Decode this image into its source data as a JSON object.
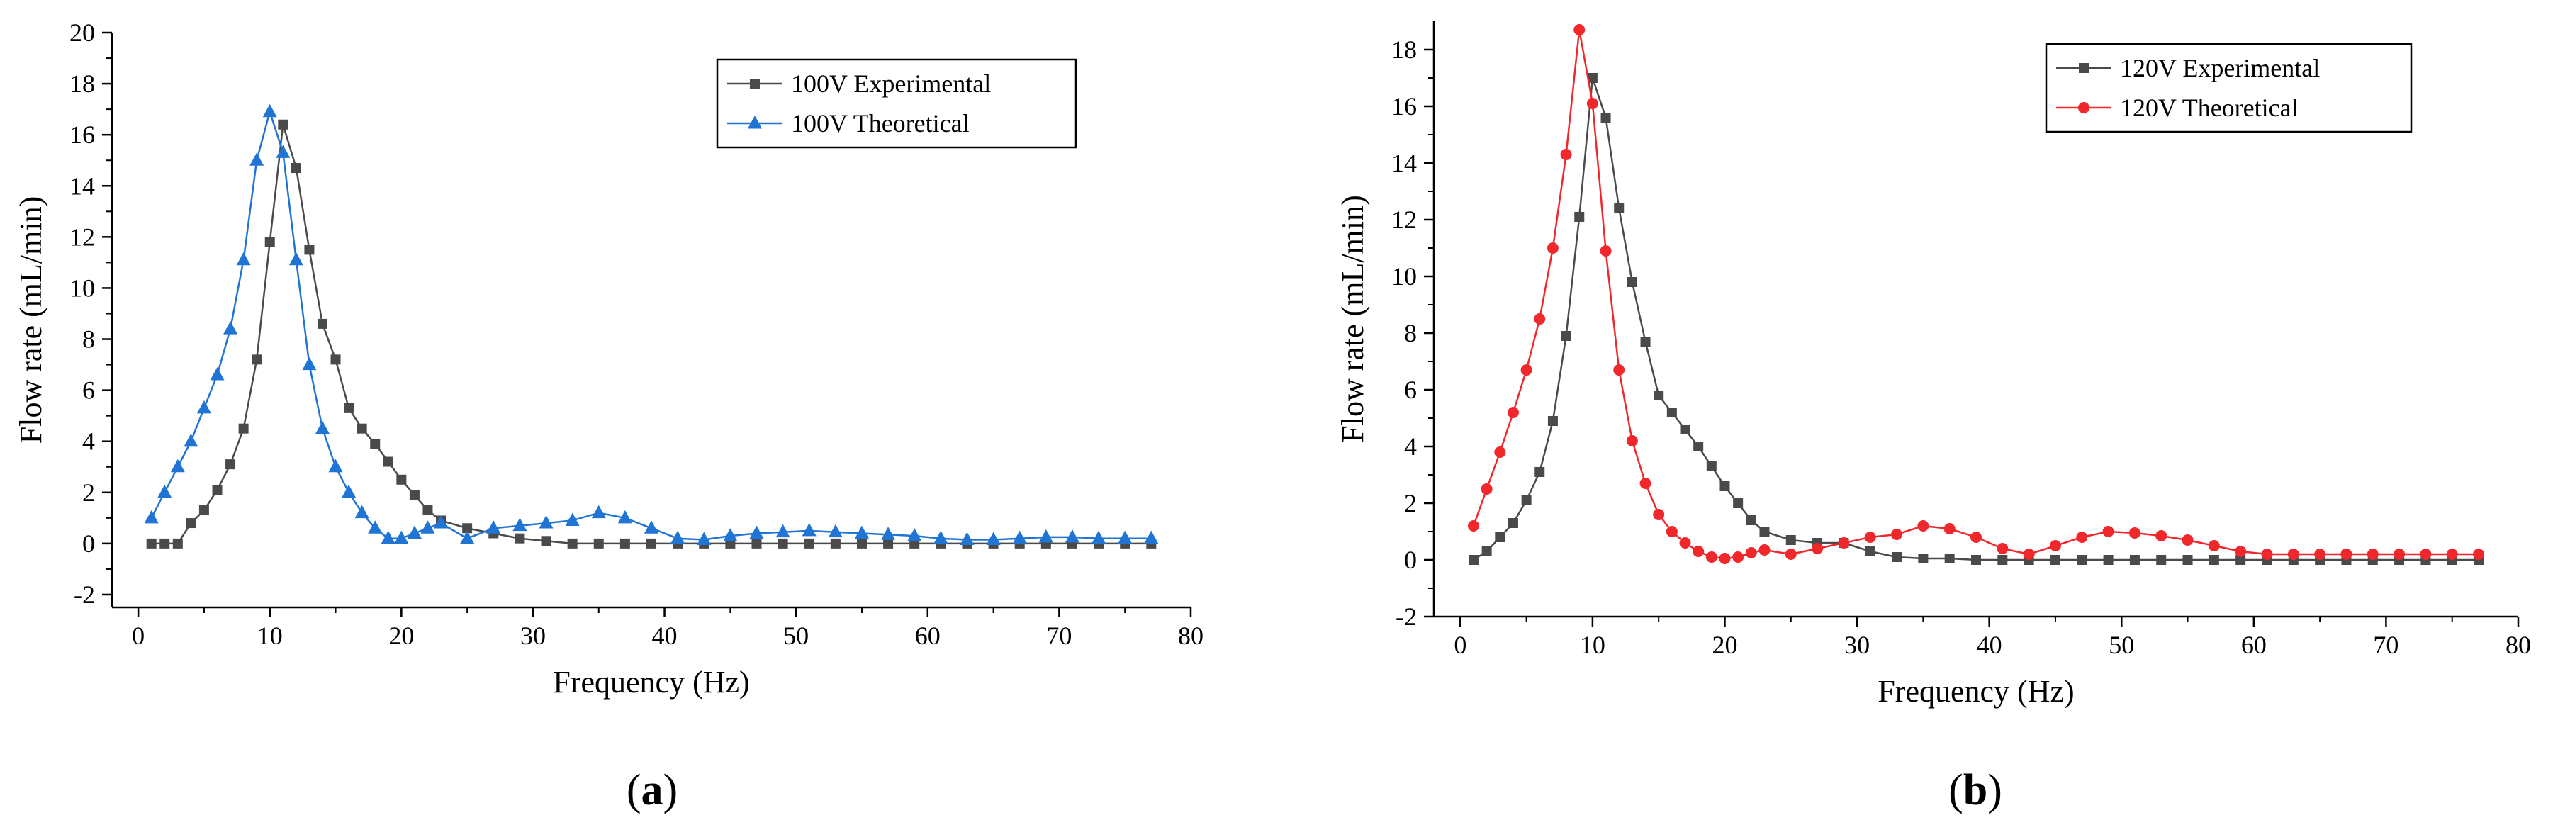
{
  "chart_data": [
    {
      "type": "line",
      "panel_label": "a",
      "xlabel": "Frequency (Hz)",
      "ylabel": "Flow rate (mL/min)",
      "xlim": [
        -2,
        80
      ],
      "ylim": [
        -2.5,
        20
      ],
      "xticks": [
        0,
        10,
        20,
        30,
        40,
        50,
        60,
        70,
        80
      ],
      "yticks": [
        -2,
        0,
        2,
        4,
        6,
        8,
        10,
        12,
        14,
        16,
        18,
        20
      ],
      "legend_position": "top-right",
      "series": [
        {
          "name": "100V Experimental",
          "color": "#4a4a4a",
          "marker": "square",
          "x": [
            1,
            2,
            3,
            4,
            5,
            6,
            7,
            8,
            9,
            10,
            11,
            12,
            13,
            14,
            15,
            16,
            17,
            18,
            19,
            20,
            21,
            22,
            23,
            25,
            27,
            29,
            31,
            33,
            35,
            37,
            39,
            41,
            43,
            45,
            47,
            49,
            51,
            53,
            55,
            57,
            59,
            61,
            63,
            65,
            67,
            69,
            71,
            73,
            75,
            77
          ],
          "y": [
            0,
            0,
            0,
            0.8,
            1.3,
            2.1,
            3.1,
            4.5,
            7.2,
            11.8,
            16.4,
            14.7,
            11.5,
            8.6,
            7.2,
            5.3,
            4.5,
            3.9,
            3.2,
            2.5,
            1.9,
            1.3,
            0.9,
            0.6,
            0.4,
            0.2,
            0.1,
            0,
            0,
            0,
            0,
            0,
            0,
            0,
            0,
            0,
            0,
            0,
            0,
            0,
            0,
            0,
            0,
            0,
            0,
            0,
            0,
            0,
            0,
            0
          ]
        },
        {
          "name": "100V Theoretical",
          "color": "#1f74d4",
          "marker": "triangle",
          "x": [
            1,
            2,
            3,
            4,
            5,
            6,
            7,
            8,
            9,
            10,
            11,
            12,
            13,
            14,
            15,
            16,
            17,
            18,
            19,
            20,
            21,
            22,
            23,
            25,
            27,
            29,
            31,
            33,
            35,
            37,
            39,
            41,
            43,
            45,
            47,
            49,
            51,
            53,
            55,
            57,
            59,
            61,
            63,
            65,
            67,
            69,
            71,
            73,
            75,
            77
          ],
          "y": [
            1.0,
            2.0,
            3.0,
            4.0,
            5.3,
            6.6,
            8.4,
            11.1,
            15.0,
            16.9,
            15.3,
            11.1,
            7.0,
            4.5,
            3.0,
            2.0,
            1.2,
            0.6,
            0.2,
            0.2,
            0.4,
            0.6,
            0.8,
            0.2,
            0.6,
            0.7,
            0.8,
            0.9,
            1.2,
            1.0,
            0.6,
            0.2,
            0.15,
            0.3,
            0.4,
            0.45,
            0.5,
            0.45,
            0.4,
            0.35,
            0.3,
            0.2,
            0.15,
            0.15,
            0.2,
            0.25,
            0.25,
            0.2,
            0.2,
            0.2
          ]
        }
      ]
    },
    {
      "type": "line",
      "panel_label": "b",
      "xlabel": "Frequency (Hz)",
      "ylabel": "Flow rate (mL/min)",
      "xlim": [
        -2,
        80
      ],
      "ylim": [
        -2,
        19
      ],
      "xticks": [
        0,
        10,
        20,
        30,
        40,
        50,
        60,
        70,
        80
      ],
      "yticks": [
        -2,
        0,
        2,
        4,
        6,
        8,
        10,
        12,
        14,
        16,
        18
      ],
      "legend_position": "top-right",
      "series": [
        {
          "name": "120V Experimental",
          "color": "#4a4a4a",
          "marker": "square",
          "x": [
            1,
            2,
            3,
            4,
            5,
            6,
            7,
            8,
            9,
            10,
            11,
            12,
            13,
            14,
            15,
            16,
            17,
            18,
            19,
            20,
            21,
            22,
            23,
            25,
            27,
            29,
            31,
            33,
            35,
            37,
            39,
            41,
            43,
            45,
            47,
            49,
            51,
            53,
            55,
            57,
            59,
            61,
            63,
            65,
            67,
            69,
            71,
            73,
            75,
            77
          ],
          "y": [
            0,
            0.3,
            0.8,
            1.3,
            2.1,
            3.1,
            4.9,
            7.9,
            12.1,
            17.0,
            15.6,
            12.4,
            9.8,
            7.7,
            5.8,
            5.2,
            4.6,
            4.0,
            3.3,
            2.6,
            2.0,
            1.4,
            1.0,
            0.7,
            0.6,
            0.6,
            0.3,
            0.1,
            0.05,
            0.05,
            0,
            0,
            0,
            0,
            0,
            0,
            0,
            0,
            0,
            0,
            0,
            0,
            0,
            0,
            0,
            0,
            0,
            0,
            0,
            0
          ]
        },
        {
          "name": "120V Theoretical",
          "color": "#f0272b",
          "marker": "circle",
          "x": [
            1,
            2,
            3,
            4,
            5,
            6,
            7,
            8,
            9,
            10,
            11,
            12,
            13,
            14,
            15,
            16,
            17,
            18,
            19,
            20,
            21,
            22,
            23,
            25,
            27,
            29,
            31,
            33,
            35,
            37,
            39,
            41,
            43,
            45,
            47,
            49,
            51,
            53,
            55,
            57,
            59,
            61,
            63,
            65,
            67,
            69,
            71,
            73,
            75,
            77
          ],
          "y": [
            1.2,
            2.5,
            3.8,
            5.2,
            6.7,
            8.5,
            11.0,
            14.3,
            18.7,
            16.1,
            10.9,
            6.7,
            4.2,
            2.7,
            1.6,
            1.0,
            0.6,
            0.3,
            0.1,
            0.05,
            0.1,
            0.25,
            0.35,
            0.2,
            0.4,
            0.6,
            0.8,
            0.9,
            1.2,
            1.1,
            0.8,
            0.4,
            0.2,
            0.5,
            0.8,
            1.0,
            0.95,
            0.85,
            0.7,
            0.5,
            0.3,
            0.2,
            0.2,
            0.2,
            0.2,
            0.2,
            0.2,
            0.2,
            0.2,
            0.2
          ]
        }
      ]
    }
  ]
}
